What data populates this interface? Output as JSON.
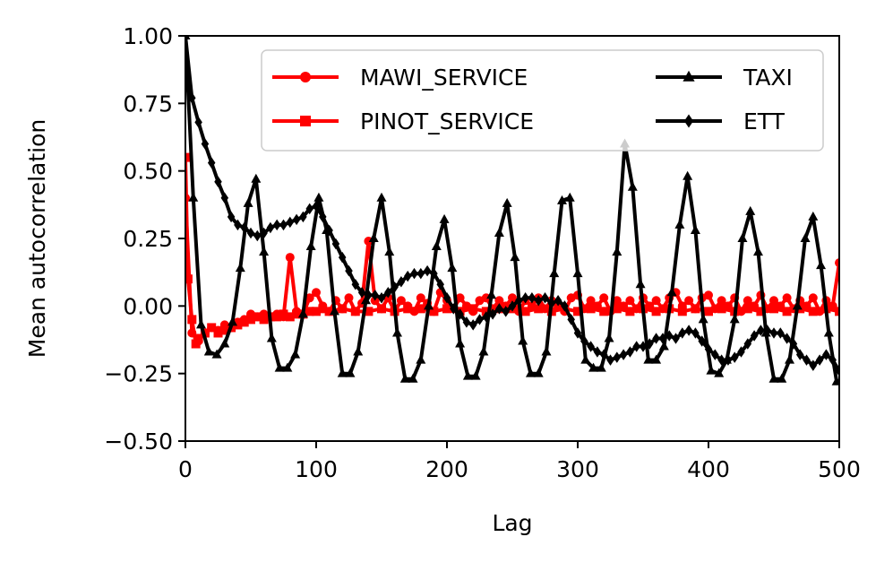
{
  "chart_data": {
    "type": "line",
    "xlabel": "Lag",
    "ylabel": "Mean autocorrelation",
    "xlim": [
      0,
      500
    ],
    "ylim": [
      -0.5,
      1.0
    ],
    "xticks": [
      0,
      100,
      200,
      300,
      400,
      500
    ],
    "xtick_labels": [
      "0",
      "100",
      "200",
      "300",
      "400",
      "500"
    ],
    "yticks": [
      -0.5,
      -0.25,
      0.0,
      0.25,
      0.5,
      0.75,
      1.0
    ],
    "ytick_labels": [
      "−0.50",
      "−0.25",
      "0.00",
      "0.25",
      "0.50",
      "0.75",
      "1.00"
    ],
    "grid": false,
    "legend": {
      "position": "top-right",
      "columns": 2
    },
    "series": [
      {
        "name": "MAWI_SERVICE",
        "color": "#ff0000",
        "marker": "circle",
        "x": [
          0,
          5,
          10,
          15,
          20,
          25,
          30,
          35,
          40,
          45,
          50,
          55,
          60,
          65,
          70,
          75,
          80,
          85,
          90,
          95,
          100,
          105,
          110,
          115,
          120,
          125,
          130,
          135,
          140,
          145,
          150,
          155,
          160,
          165,
          170,
          175,
          180,
          185,
          190,
          195,
          200,
          205,
          210,
          215,
          220,
          225,
          230,
          235,
          240,
          245,
          250,
          255,
          260,
          265,
          270,
          275,
          280,
          285,
          290,
          295,
          300,
          305,
          310,
          315,
          320,
          325,
          330,
          335,
          340,
          345,
          350,
          355,
          360,
          365,
          370,
          375,
          380,
          385,
          390,
          395,
          400,
          405,
          410,
          415,
          420,
          425,
          430,
          435,
          440,
          445,
          450,
          455,
          460,
          465,
          470,
          475,
          480,
          485,
          490,
          495,
          500
        ],
        "y": [
          0.4,
          -0.1,
          -0.13,
          -0.1,
          -0.08,
          -0.09,
          -0.07,
          -0.08,
          -0.06,
          -0.05,
          -0.03,
          -0.04,
          -0.03,
          -0.04,
          -0.03,
          -0.04,
          0.18,
          -0.02,
          -0.03,
          0.03,
          0.05,
          0.0,
          -0.02,
          0.02,
          -0.01,
          0.03,
          -0.02,
          0.01,
          0.24,
          0.02,
          -0.01,
          0.03,
          -0.02,
          0.02,
          0.0,
          -0.02,
          0.03,
          0.01,
          -0.02,
          0.05,
          0.02,
          -0.01,
          0.03,
          0.0,
          -0.02,
          0.02,
          0.03,
          -0.01,
          0.02,
          0.0,
          0.03,
          -0.02,
          0.02,
          0.0,
          0.03,
          -0.01,
          0.02,
          0.0,
          -0.02,
          0.03,
          0.04,
          -0.01,
          0.02,
          0.0,
          0.03,
          -0.02,
          0.02,
          0.0,
          0.02,
          -0.01,
          0.03,
          0.0,
          0.02,
          -0.01,
          0.03,
          0.05,
          0.0,
          0.02,
          -0.01,
          0.03,
          0.04,
          -0.01,
          0.02,
          0.0,
          0.03,
          -0.02,
          0.02,
          0.0,
          0.04,
          -0.01,
          0.02,
          0.0,
          0.03,
          -0.01,
          0.02,
          0.0,
          0.03,
          -0.02,
          0.02,
          0.0,
          0.16
        ]
      },
      {
        "name": "PINOT_SERVICE",
        "color": "#ff0000",
        "marker": "square",
        "x": [
          0,
          2,
          5,
          8,
          10,
          15,
          20,
          25,
          30,
          35,
          40,
          45,
          50,
          55,
          60,
          65,
          70,
          75,
          80,
          85,
          90,
          95,
          100,
          110,
          120,
          130,
          140,
          150,
          160,
          170,
          180,
          190,
          200,
          210,
          220,
          230,
          240,
          250,
          260,
          270,
          280,
          290,
          300,
          310,
          320,
          330,
          340,
          350,
          360,
          370,
          380,
          390,
          400,
          410,
          420,
          430,
          440,
          450,
          460,
          470,
          480,
          490,
          500
        ],
        "y": [
          0.55,
          0.1,
          -0.05,
          -0.14,
          -0.12,
          -0.1,
          -0.08,
          -0.1,
          -0.09,
          -0.08,
          -0.07,
          -0.06,
          -0.05,
          -0.04,
          -0.05,
          -0.04,
          -0.04,
          -0.03,
          -0.04,
          -0.03,
          -0.03,
          -0.02,
          -0.02,
          -0.02,
          -0.01,
          -0.02,
          -0.02,
          -0.01,
          -0.02,
          -0.01,
          -0.01,
          -0.02,
          -0.01,
          -0.02,
          -0.01,
          -0.02,
          -0.01,
          -0.01,
          -0.02,
          -0.01,
          -0.02,
          -0.01,
          -0.02,
          -0.01,
          -0.02,
          -0.01,
          -0.02,
          -0.01,
          -0.02,
          -0.01,
          -0.02,
          -0.01,
          -0.02,
          -0.01,
          -0.02,
          -0.01,
          -0.02,
          -0.01,
          -0.02,
          -0.01,
          -0.02,
          -0.01,
          -0.02
        ]
      },
      {
        "name": "TAXI",
        "color": "#000000",
        "marker": "triangle",
        "x": [
          0,
          6,
          12,
          18,
          24,
          30,
          36,
          42,
          48,
          54,
          60,
          66,
          72,
          78,
          84,
          90,
          96,
          102,
          108,
          114,
          120,
          126,
          132,
          138,
          144,
          150,
          156,
          162,
          168,
          174,
          180,
          186,
          192,
          198,
          204,
          210,
          216,
          222,
          228,
          234,
          240,
          246,
          252,
          258,
          264,
          270,
          276,
          282,
          288,
          294,
          300,
          306,
          312,
          318,
          324,
          330,
          336,
          342,
          348,
          354,
          360,
          366,
          372,
          378,
          384,
          390,
          396,
          402,
          408,
          414,
          420,
          426,
          432,
          438,
          444,
          450,
          456,
          462,
          468,
          474,
          480,
          486,
          492,
          498
        ],
        "y": [
          1.0,
          0.4,
          -0.07,
          -0.17,
          -0.18,
          -0.14,
          -0.06,
          0.14,
          0.38,
          0.47,
          0.2,
          -0.12,
          -0.23,
          -0.23,
          -0.18,
          -0.03,
          0.22,
          0.4,
          0.28,
          -0.02,
          -0.25,
          -0.25,
          -0.17,
          0.02,
          0.25,
          0.4,
          0.2,
          -0.1,
          -0.27,
          -0.27,
          -0.2,
          0.0,
          0.22,
          0.32,
          0.14,
          -0.14,
          -0.26,
          -0.26,
          -0.17,
          0.04,
          0.27,
          0.38,
          0.18,
          -0.13,
          -0.25,
          -0.25,
          -0.17,
          0.12,
          0.39,
          0.4,
          0.12,
          -0.2,
          -0.23,
          -0.23,
          -0.12,
          0.2,
          0.6,
          0.44,
          0.08,
          -0.2,
          -0.2,
          -0.15,
          0.05,
          0.3,
          0.48,
          0.28,
          -0.05,
          -0.24,
          -0.25,
          -0.2,
          -0.05,
          0.25,
          0.35,
          0.2,
          -0.1,
          -0.27,
          -0.27,
          -0.2,
          0.0,
          0.25,
          0.33,
          0.15,
          -0.1,
          -0.28
        ]
      },
      {
        "name": "ETT",
        "color": "#000000",
        "marker": "diamond",
        "x": [
          0,
          5,
          10,
          15,
          20,
          25,
          30,
          35,
          40,
          45,
          50,
          55,
          60,
          65,
          70,
          75,
          80,
          85,
          90,
          95,
          100,
          105,
          110,
          115,
          120,
          125,
          130,
          135,
          140,
          145,
          150,
          155,
          160,
          165,
          170,
          175,
          180,
          185,
          190,
          195,
          200,
          205,
          210,
          215,
          220,
          225,
          230,
          235,
          240,
          245,
          250,
          255,
          260,
          265,
          270,
          275,
          280,
          285,
          290,
          295,
          300,
          305,
          310,
          315,
          320,
          325,
          330,
          335,
          340,
          345,
          350,
          355,
          360,
          365,
          370,
          375,
          380,
          385,
          390,
          395,
          400,
          405,
          410,
          415,
          420,
          425,
          430,
          435,
          440,
          445,
          450,
          455,
          460,
          465,
          470,
          475,
          480,
          485,
          490,
          495,
          500
        ],
        "y": [
          1.0,
          0.77,
          0.68,
          0.6,
          0.53,
          0.46,
          0.4,
          0.33,
          0.3,
          0.29,
          0.27,
          0.26,
          0.27,
          0.29,
          0.3,
          0.3,
          0.31,
          0.32,
          0.33,
          0.36,
          0.37,
          0.33,
          0.28,
          0.23,
          0.18,
          0.13,
          0.08,
          0.05,
          0.04,
          0.04,
          0.03,
          0.05,
          0.07,
          0.09,
          0.11,
          0.12,
          0.12,
          0.13,
          0.12,
          0.08,
          0.03,
          -0.01,
          -0.03,
          -0.06,
          -0.07,
          -0.05,
          -0.04,
          -0.03,
          -0.01,
          -0.02,
          0.0,
          0.02,
          0.03,
          0.03,
          0.02,
          0.03,
          0.01,
          0.02,
          0.0,
          -0.05,
          -0.1,
          -0.13,
          -0.15,
          -0.17,
          -0.18,
          -0.2,
          -0.19,
          -0.18,
          -0.17,
          -0.15,
          -0.15,
          -0.14,
          -0.12,
          -0.12,
          -0.11,
          -0.12,
          -0.1,
          -0.09,
          -0.1,
          -0.13,
          -0.16,
          -0.18,
          -0.2,
          -0.2,
          -0.19,
          -0.17,
          -0.14,
          -0.11,
          -0.09,
          -0.09,
          -0.1,
          -0.1,
          -0.12,
          -0.14,
          -0.18,
          -0.2,
          -0.22,
          -0.2,
          -0.18,
          -0.2,
          -0.24
        ]
      }
    ]
  }
}
